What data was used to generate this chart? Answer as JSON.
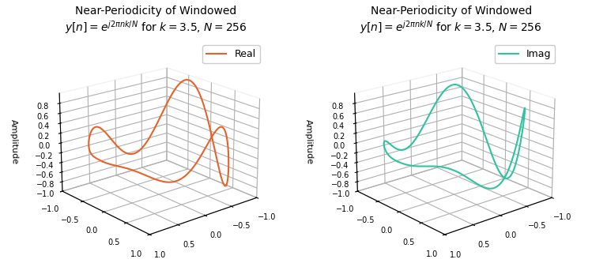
{
  "N": 256,
  "k": 3.5,
  "title_line1": "Near-Periodicity of Windowed",
  "title_line2": "$y[n] = e^{j2\\pi nk/N}$ for $k = 3.5$, $N = 256$",
  "real_color": "#E8622A",
  "imag_color": "#2EC4A0",
  "ylabel": "Amplitude",
  "ylim": [
    -1.0,
    1.0
  ],
  "legend_real": "Real",
  "legend_imag": "Imag",
  "figsize": [
    7.68,
    3.33
  ],
  "dpi": 100,
  "elev": 20,
  "azim": 50
}
